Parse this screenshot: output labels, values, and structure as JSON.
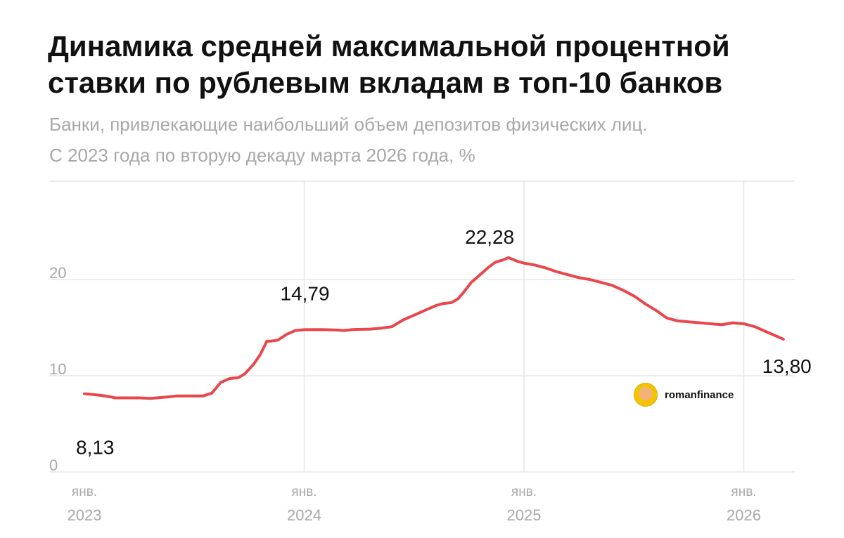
{
  "title_line1": "Динамика средней максимальной процентной",
  "title_line2": "ставки по рублевым вкладам в топ-10 банков",
  "subtitle_line1": "Банки, привлекающие наибольший объем депозитов физических лиц.",
  "subtitle_line2": "С 2023 года по вторую декаду марта 2026 года, %",
  "watermark": {
    "text": "romanfinance",
    "icon": "avatar-icon"
  },
  "colors": {
    "line": "#e8474b",
    "grid": "#e6e6e6",
    "axis_text": "#a8a8a8"
  },
  "chart_data": {
    "type": "line",
    "title": "Динамика средней максимальной процентной ставки по рублевым вкладам в топ-10 банков",
    "ylim": [
      0,
      22
    ],
    "yticks": [
      "0",
      "10",
      "20"
    ],
    "xticks": [
      {
        "month": "янв.",
        "year": "2023",
        "x": 2023.0
      },
      {
        "month": "янв.",
        "year": "2024",
        "x": 2024.0
      },
      {
        "month": "янв.",
        "year": "2025",
        "x": 2025.0
      },
      {
        "month": "янв.",
        "year": "2026",
        "x": 2026.0
      }
    ],
    "grid": true,
    "series": [
      {
        "x": [
          2023.0,
          2023.04,
          2023.08,
          2023.12,
          2023.14,
          2023.18,
          2023.25,
          2023.3,
          2023.33,
          2023.38,
          2023.42,
          2023.46,
          2023.5,
          2023.54,
          2023.58,
          2023.62,
          2023.66,
          2023.7,
          2023.73,
          2023.77,
          2023.8,
          2023.83,
          2023.85,
          2023.88,
          2023.92,
          2023.96,
          2024.0,
          2024.08,
          2024.15,
          2024.18,
          2024.22,
          2024.3,
          2024.35,
          2024.4,
          2024.45,
          2024.48,
          2024.52,
          2024.55,
          2024.6,
          2024.63,
          2024.67,
          2024.7,
          2024.73,
          2024.76,
          2024.8,
          2024.84,
          2024.87,
          2024.9,
          2024.93,
          2024.97,
          2025.0,
          2025.05,
          2025.1,
          2025.15,
          2025.2,
          2025.25,
          2025.3,
          2025.35,
          2025.4,
          2025.45,
          2025.5,
          2025.55,
          2025.6,
          2025.65,
          2025.7,
          2025.75,
          2025.8,
          2025.85,
          2025.9,
          2025.95,
          2026.0,
          2026.05,
          2026.1,
          2026.15,
          2026.18
        ],
        "y": [
          8.13,
          8.05,
          7.95,
          7.8,
          7.7,
          7.7,
          7.7,
          7.65,
          7.7,
          7.8,
          7.9,
          7.9,
          7.9,
          7.9,
          8.2,
          9.3,
          9.7,
          9.8,
          10.2,
          11.2,
          12.2,
          13.6,
          13.6,
          13.7,
          14.3,
          14.7,
          14.79,
          14.8,
          14.75,
          14.7,
          14.8,
          14.85,
          14.95,
          15.1,
          15.8,
          16.1,
          16.5,
          16.8,
          17.3,
          17.5,
          17.6,
          18.0,
          18.8,
          19.7,
          20.5,
          21.3,
          21.8,
          22.0,
          22.28,
          21.9,
          21.7,
          21.5,
          21.2,
          20.8,
          20.5,
          20.2,
          20.0,
          19.7,
          19.4,
          18.9,
          18.3,
          17.5,
          16.8,
          16.0,
          15.7,
          15.6,
          15.5,
          15.4,
          15.3,
          15.5,
          15.4,
          15.1,
          14.6,
          14.1,
          13.8
        ]
      }
    ],
    "annotations": [
      {
        "label": "8,13",
        "x": 2023.0,
        "y": 8.13
      },
      {
        "label": "14,79",
        "x": 2024.0,
        "y": 14.79
      },
      {
        "label": "22,28",
        "x": 2024.93,
        "y": 22.28
      },
      {
        "label": "13,80",
        "x": 2026.18,
        "y": 13.8
      }
    ]
  }
}
